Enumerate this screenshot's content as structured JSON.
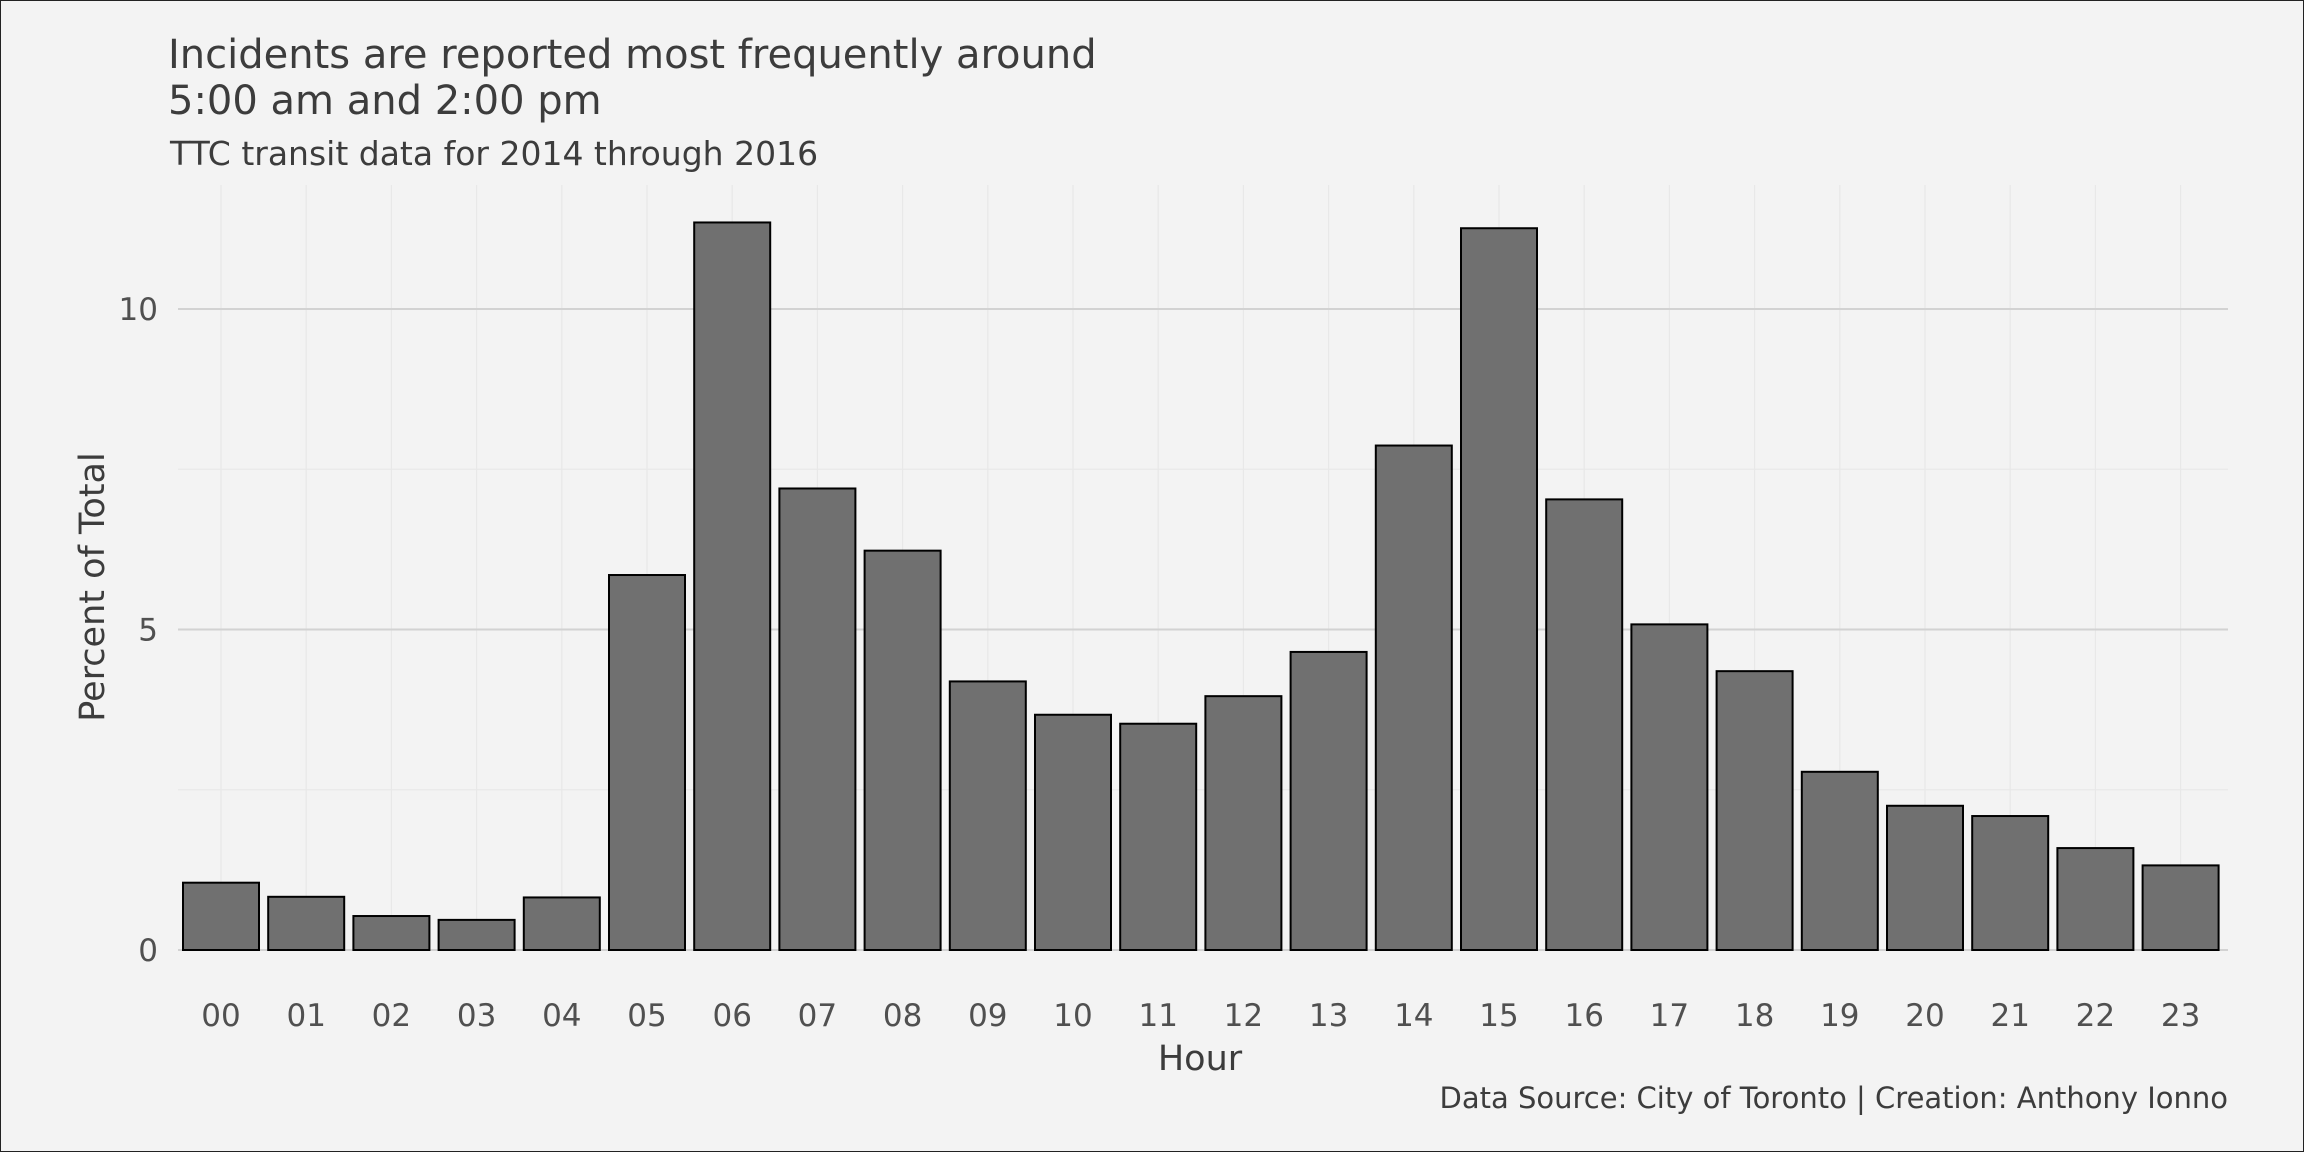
{
  "chart_data": {
    "type": "bar",
    "title_line1": "Incidents are reported most frequently around",
    "title_line2": "5:00 am and 2:00 pm",
    "subtitle": "TTC transit data for 2014 through 2016",
    "xlabel": "Hour",
    "ylabel": "Percent of Total",
    "caption": "Data Source: City of Toronto | Creation: Anthony Ionno",
    "categories": [
      "00",
      "01",
      "02",
      "03",
      "04",
      "05",
      "06",
      "07",
      "08",
      "09",
      "10",
      "11",
      "12",
      "13",
      "14",
      "15",
      "16",
      "17",
      "18",
      "19",
      "20",
      "21",
      "22",
      "23"
    ],
    "values": [
      1.05,
      0.83,
      0.53,
      0.47,
      0.82,
      5.85,
      11.35,
      7.2,
      6.23,
      4.19,
      3.67,
      3.53,
      3.96,
      4.65,
      7.87,
      11.26,
      7.03,
      5.08,
      4.35,
      2.78,
      2.25,
      2.09,
      1.59,
      1.32
    ],
    "yticks": [
      0,
      5,
      10
    ],
    "ylim": [
      0,
      12
    ],
    "grid": true,
    "colors": {
      "background": "#f3f3f3",
      "bar_fill": "#707070",
      "bar_outline": "#000000"
    }
  }
}
